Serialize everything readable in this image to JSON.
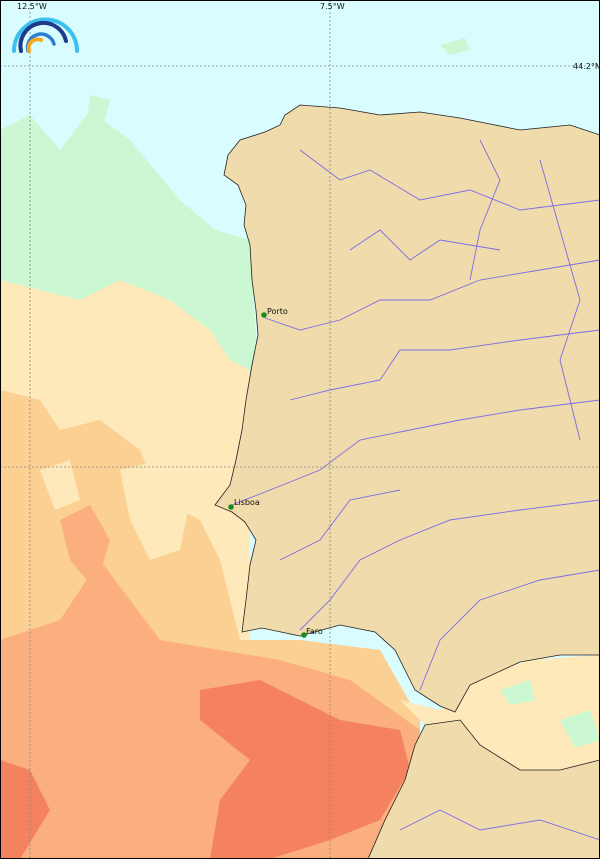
{
  "grid_labels": {
    "lon_west": "12.5°W",
    "lon_mid": "7.5°W",
    "lat_top": "44.2°N"
  },
  "cities": [
    {
      "name": "Porto"
    },
    {
      "name": "Lisboa"
    },
    {
      "name": "Faro"
    }
  ],
  "colors": {
    "land": "#efdbab",
    "ocean_cold": "#d9fdff",
    "ocean_cool": "#cbf7d2",
    "ocean_mild": "#fde9b9",
    "ocean_warm": "#fccf92",
    "ocean_warmer": "#fbaf7f",
    "ocean_hot": "#f4825e",
    "river": "#7a6ee6",
    "city_marker": "#1a8a1a"
  },
  "logo": {
    "icon": "rainbow-arcs-logo"
  }
}
